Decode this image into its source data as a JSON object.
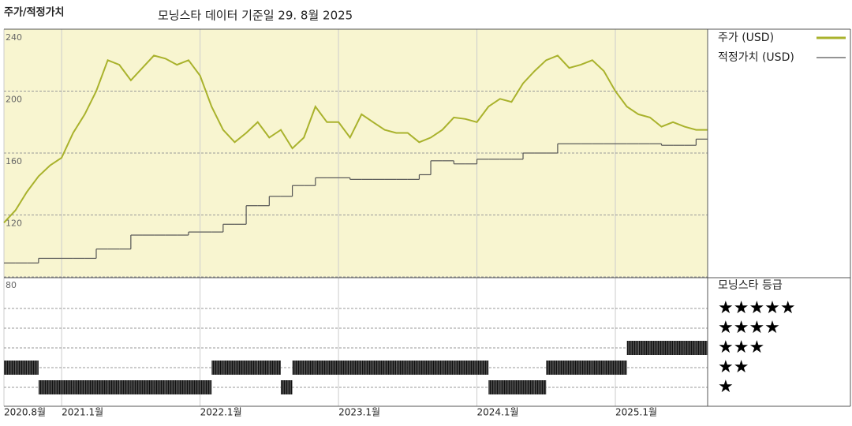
{
  "chart_data": {
    "type": "line",
    "title": "주가/적정가치",
    "subtitle": "모닝스타 데이터 기준일 29. 8월 2025",
    "x": [
      "2020-08",
      "2020-09",
      "2020-10",
      "2020-11",
      "2020-12",
      "2021-01",
      "2021-02",
      "2021-03",
      "2021-04",
      "2021-05",
      "2021-06",
      "2021-07",
      "2021-08",
      "2021-09",
      "2021-10",
      "2021-11",
      "2021-12",
      "2022-01",
      "2022-02",
      "2022-03",
      "2022-04",
      "2022-05",
      "2022-06",
      "2022-07",
      "2022-08",
      "2022-09",
      "2022-10",
      "2022-11",
      "2022-12",
      "2023-01",
      "2023-02",
      "2023-03",
      "2023-04",
      "2023-05",
      "2023-06",
      "2023-07",
      "2023-08",
      "2023-09",
      "2023-10",
      "2023-11",
      "2023-12",
      "2024-01",
      "2024-02",
      "2024-03",
      "2024-04",
      "2024-05",
      "2024-06",
      "2024-07",
      "2024-08",
      "2024-09",
      "2024-10",
      "2024-11",
      "2024-12",
      "2025-01",
      "2025-02",
      "2025-03",
      "2025-04",
      "2025-05",
      "2025-06",
      "2025-07",
      "2025-08",
      "2025-09"
    ],
    "xlim": [
      "2020-08",
      "2025-09"
    ],
    "xticks": [
      {
        "value": "2020-08",
        "label": "2020.8월"
      },
      {
        "value": "2021-01",
        "label": "2021.1월"
      },
      {
        "value": "2022-01",
        "label": "2022.1월"
      },
      {
        "value": "2023-01",
        "label": "2023.1월"
      },
      {
        "value": "2024-01",
        "label": "2024.1월"
      },
      {
        "value": "2025-01",
        "label": "2025.1월"
      }
    ],
    "ylim": [
      80,
      240
    ],
    "yticks": [
      80,
      120,
      160,
      200,
      240
    ],
    "grid": true,
    "series": [
      {
        "name": "주가 (USD)",
        "color": "#a9b22c",
        "values": [
          115,
          123,
          135,
          145,
          152,
          157,
          173,
          185,
          200,
          220,
          217,
          207,
          215,
          223,
          221,
          217,
          220,
          210,
          190,
          175,
          167,
          173,
          180,
          170,
          175,
          163,
          170,
          190,
          180,
          180,
          170,
          185,
          180,
          175,
          173,
          173,
          167,
          170,
          175,
          183,
          182,
          180,
          190,
          195,
          193,
          205,
          213,
          220,
          223,
          215,
          217,
          220,
          213,
          200,
          190,
          185,
          183,
          177,
          180,
          177,
          175,
          175
        ]
      },
      {
        "name": "적정가치 (USD)",
        "color": "#555555",
        "step": true,
        "values": [
          89,
          89,
          89,
          92,
          92,
          92,
          92,
          92,
          98,
          98,
          98,
          107,
          107,
          107,
          107,
          107,
          109,
          109,
          109,
          114,
          114,
          126,
          126,
          132,
          132,
          139,
          139,
          144,
          144,
          144,
          143,
          143,
          143,
          143,
          143,
          143,
          146,
          155,
          155,
          153,
          153,
          156,
          156,
          156,
          156,
          160,
          160,
          160,
          166,
          166,
          166,
          166,
          166,
          166,
          166,
          166,
          166,
          165,
          165,
          165,
          169,
          169
        ]
      }
    ],
    "rating": {
      "title": "모닝스타 등급",
      "levels": [
        {
          "value": 5,
          "label": "★★★★★"
        },
        {
          "value": 4,
          "label": "★★★★"
        },
        {
          "value": 3,
          "label": "★★★"
        },
        {
          "value": 2,
          "label": "★★"
        },
        {
          "value": 1,
          "label": "★"
        }
      ],
      "color": "#333333",
      "values": [
        2,
        2,
        2,
        1,
        1,
        1,
        1,
        1,
        1,
        1,
        1,
        1,
        1,
        1,
        1,
        1,
        1,
        1,
        2,
        2,
        2,
        2,
        2,
        2,
        1,
        2,
        2,
        2,
        2,
        2,
        2,
        2,
        2,
        2,
        2,
        2,
        2,
        2,
        2,
        2,
        2,
        2,
        1,
        1,
        1,
        1,
        1,
        2,
        2,
        2,
        2,
        2,
        2,
        2,
        3,
        3,
        3,
        3,
        3,
        3,
        3,
        3
      ]
    }
  }
}
